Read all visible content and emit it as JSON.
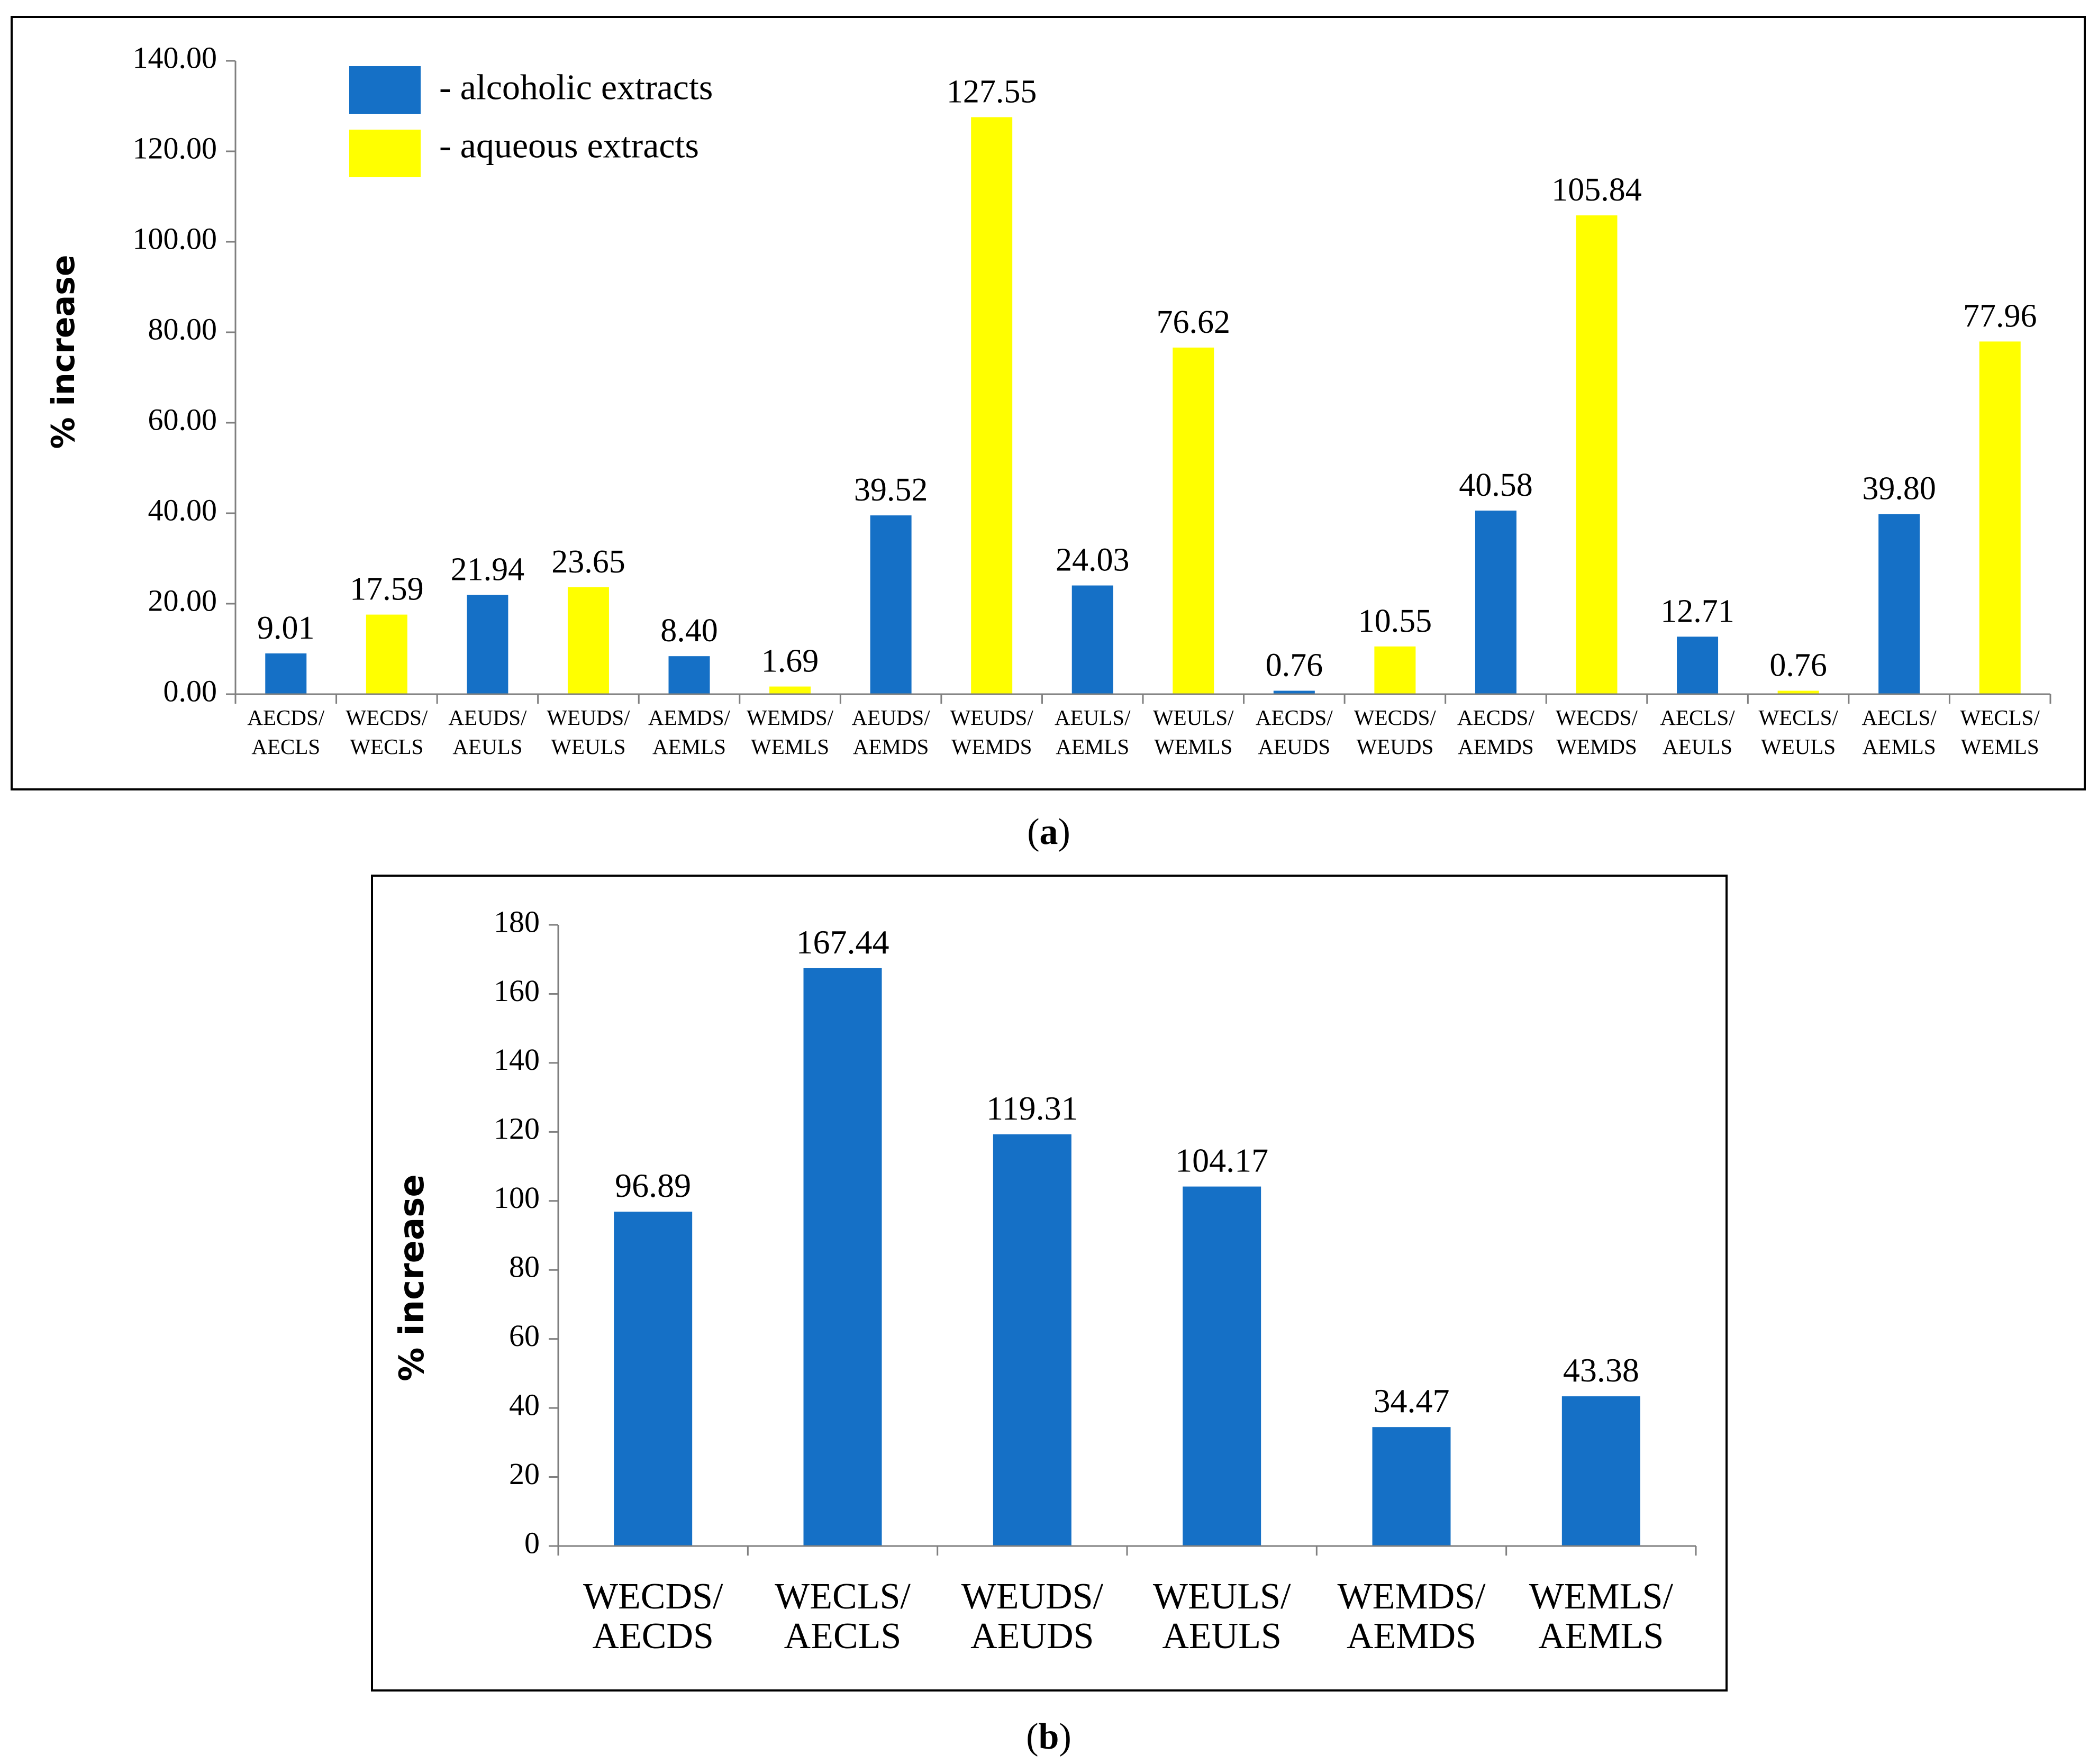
{
  "chart_data": [
    {
      "type": "bar",
      "panel_label": "a",
      "ylabel": "% increase",
      "ylim": [
        0,
        140
      ],
      "yticks": [
        0,
        20,
        40,
        60,
        80,
        100,
        120,
        140
      ],
      "ytick_decimals": 2,
      "legend": [
        {
          "name": "- alcoholic extracts",
          "color": "#1570C6"
        },
        {
          "name": "- aqueous extracts",
          "color": "#FFFF00"
        }
      ],
      "categories": [
        "AECDS/ AECLS",
        "WECDS/ WECLS",
        "AEUDS/ AEULS",
        "WEUDS/ WEULS",
        "AEMDS/ AEMLS",
        "WEMDS/ WEMLS",
        "AEUDS/ AEMDS",
        "WEUDS/ WEMDS",
        "AEULS/ AEMLS",
        "WEULS/ WEMLS",
        "AECDS/ AEUDS",
        "WECDS/ WEUDS",
        "AECDS/ AEMDS",
        "WECDS/ WEMDS",
        "AECLS/ AEULS",
        "WECLS/ WEULS",
        "AECLS/ AEMLS",
        "WECLS/ WEMLS"
      ],
      "values": [
        9.01,
        17.59,
        21.94,
        23.65,
        8.4,
        1.69,
        39.52,
        127.55,
        24.03,
        76.62,
        0.76,
        10.55,
        40.58,
        105.84,
        12.71,
        0.76,
        39.8,
        77.96
      ],
      "value_labels": [
        "9.01",
        "17.59",
        "21.94",
        "23.65",
        "8.40",
        "1.69",
        "39.52",
        "127.55",
        "24.03",
        "76.62",
        "0.76",
        "10.55",
        "40.58",
        "105.84",
        "12.71",
        "0.76",
        "39.80",
        "77.96"
      ],
      "series_of_bar": [
        "alcoholic",
        "aqueous",
        "alcoholic",
        "aqueous",
        "alcoholic",
        "aqueous",
        "alcoholic",
        "aqueous",
        "alcoholic",
        "aqueous",
        "alcoholic",
        "aqueous",
        "alcoholic",
        "aqueous",
        "alcoholic",
        "aqueous",
        "alcoholic",
        "aqueous"
      ]
    },
    {
      "type": "bar",
      "panel_label": "b",
      "ylabel": "% increase",
      "ylim": [
        0,
        180
      ],
      "yticks": [
        0,
        20,
        40,
        60,
        80,
        100,
        120,
        140,
        160,
        180
      ],
      "ytick_decimals": 0,
      "color": "#1570C6",
      "categories": [
        "WECDS/ AECDS",
        "WECLS/ AECLS",
        "WEUDS/ AEUDS",
        "WEULS/ AEULS",
        "WEMDS/ AEMDS",
        "WEMLS/ AEMLS"
      ],
      "values": [
        96.89,
        167.44,
        119.31,
        104.17,
        34.47,
        43.38
      ],
      "value_labels": [
        "96.89",
        "167.44",
        "119.31",
        "104.17",
        "34.47",
        "43.38"
      ]
    }
  ],
  "colors": {
    "alcoholic": "#1570C6",
    "aqueous": "#FFFF00"
  },
  "captions": {
    "a": "a",
    "b": "b"
  }
}
